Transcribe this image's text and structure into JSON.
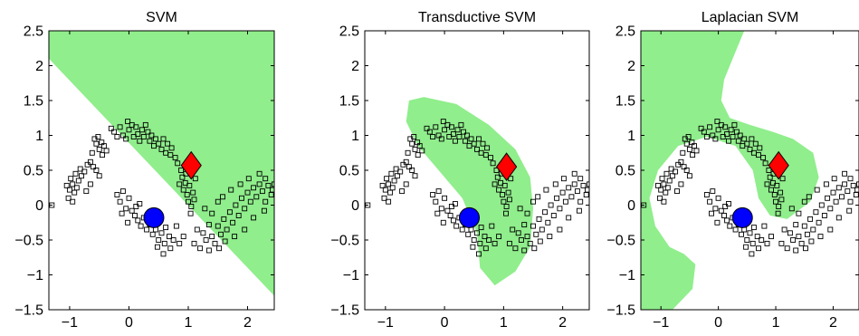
{
  "colors": {
    "region": "#90ee8c",
    "frame": "#000000",
    "unlabeled_marker": "#000000",
    "class_pos": "#ff0000",
    "class_neg": "#0000ff",
    "background": "#ffffff"
  },
  "chart_data": [
    {
      "type": "scatter",
      "title": "SVM",
      "xlim": [
        -1.35,
        2.45
      ],
      "ylim": [
        -1.5,
        2.5
      ],
      "xticks": [
        -1,
        0,
        1,
        2
      ],
      "yticks": [
        -1.5,
        -1,
        -0.5,
        0,
        0.5,
        1,
        1.5,
        2,
        2.5
      ],
      "xticklabels": [
        "−1",
        "0",
        "1",
        "2"
      ],
      "yticklabels": [
        "−1.5",
        "−1",
        "−0.5",
        "0",
        "0.5",
        "1",
        "1.5",
        "2",
        "2.5"
      ],
      "labeled_points": [
        {
          "class": "+1",
          "marker": "diamond",
          "x": 1.05,
          "y": 0.57
        },
        {
          "class": "-1",
          "marker": "circle",
          "x": 0.42,
          "y": -0.18
        }
      ],
      "region": [
        [
          -1.35,
          2.5
        ],
        [
          2.45,
          2.5
        ],
        [
          2.45,
          -1.3
        ],
        [
          -1.35,
          2.1
        ]
      ]
    },
    {
      "type": "scatter",
      "title": "Transductive SVM",
      "xlim": [
        -1.35,
        2.45
      ],
      "ylim": [
        -1.5,
        2.5
      ],
      "xticks": [
        -1,
        0,
        1,
        2
      ],
      "yticks": [
        -1.5,
        -1,
        -0.5,
        0,
        0.5,
        1,
        1.5,
        2,
        2.5
      ],
      "xticklabels": [
        "−1",
        "0",
        "1",
        "2"
      ],
      "yticklabels": [
        "−1.5",
        "−1",
        "−0.5",
        "0",
        "0.5",
        "1",
        "1.5",
        "2",
        "2.5"
      ],
      "labeled_points": [
        {
          "class": "+1",
          "marker": "diamond",
          "x": 1.05,
          "y": 0.55
        },
        {
          "class": "-1",
          "marker": "circle",
          "x": 0.42,
          "y": -0.18
        }
      ],
      "region": [
        [
          -0.35,
          1.55
        ],
        [
          0.2,
          1.45
        ],
        [
          0.75,
          1.15
        ],
        [
          1.2,
          0.8
        ],
        [
          1.45,
          0.4
        ],
        [
          1.5,
          -0.05
        ],
        [
          1.45,
          -0.6
        ],
        [
          1.2,
          -0.95
        ],
        [
          0.85,
          -1.15
        ],
        [
          0.6,
          -0.9
        ],
        [
          0.55,
          -0.4
        ],
        [
          0.3,
          0.1
        ],
        [
          -0.1,
          0.5
        ],
        [
          -0.45,
          0.85
        ],
        [
          -0.65,
          1.2
        ],
        [
          -0.6,
          1.5
        ]
      ]
    },
    {
      "type": "scatter",
      "title": "Laplacian SVM",
      "xlim": [
        -1.35,
        2.45
      ],
      "ylim": [
        -1.5,
        2.5
      ],
      "xticks": [
        -1,
        0,
        1,
        2
      ],
      "yticks": [
        -1.5,
        -1,
        -0.5,
        0,
        0.5,
        1,
        1.5,
        2,
        2.5
      ],
      "xticklabels": [
        "−1",
        "0",
        "1",
        "2"
      ],
      "yticklabels": [
        "−1.5",
        "−1",
        "−0.5",
        "0",
        "0.5",
        "1",
        "1.5",
        "2",
        "2.5"
      ],
      "labeled_points": [
        {
          "class": "+1",
          "marker": "diamond",
          "x": 1.05,
          "y": 0.57
        },
        {
          "class": "-1",
          "marker": "circle",
          "x": 0.42,
          "y": -0.18
        }
      ],
      "region": [
        [
          -1.35,
          2.5
        ],
        [
          0.45,
          2.5
        ],
        [
          0.3,
          2.2
        ],
        [
          0.1,
          1.8
        ],
        [
          0.05,
          1.5
        ],
        [
          0.2,
          1.25
        ],
        [
          0.55,
          1.15
        ],
        [
          0.95,
          1.05
        ],
        [
          1.3,
          0.95
        ],
        [
          1.65,
          0.75
        ],
        [
          1.75,
          0.4
        ],
        [
          1.6,
          0.05
        ],
        [
          1.2,
          -0.2
        ],
        [
          0.9,
          -0.15
        ],
        [
          0.7,
          0.1
        ],
        [
          0.6,
          0.5
        ],
        [
          0.3,
          0.85
        ],
        [
          -0.2,
          0.98
        ],
        [
          -0.7,
          0.85
        ],
        [
          -1.05,
          0.5
        ],
        [
          -1.2,
          0.1
        ],
        [
          -1.1,
          -0.3
        ],
        [
          -0.85,
          -0.6
        ],
        [
          -0.6,
          -0.7
        ],
        [
          -0.4,
          -0.85
        ],
        [
          -0.45,
          -1.2
        ],
        [
          -0.8,
          -1.5
        ],
        [
          -1.35,
          -1.5
        ]
      ]
    }
  ],
  "unlabeled_points": [
    [
      -0.58,
      0.95
    ],
    [
      -0.55,
      0.88
    ],
    [
      -0.52,
      0.98
    ],
    [
      -0.5,
      0.8
    ],
    [
      -0.46,
      0.9
    ],
    [
      -0.45,
      0.72
    ],
    [
      -0.42,
      0.85
    ],
    [
      -0.38,
      0.78
    ],
    [
      -0.62,
      0.75
    ],
    [
      -0.65,
      0.62
    ],
    [
      -0.6,
      0.55
    ],
    [
      -0.7,
      0.58
    ],
    [
      -0.75,
      0.48
    ],
    [
      -0.8,
      0.42
    ],
    [
      -0.82,
      0.52
    ],
    [
      -0.85,
      0.35
    ],
    [
      -0.88,
      0.25
    ],
    [
      -0.9,
      0.45
    ],
    [
      -0.92,
      0.18
    ],
    [
      -0.95,
      0.3
    ],
    [
      -0.98,
      0.38
    ],
    [
      -1.0,
      0.22
    ],
    [
      -1.02,
      0.1
    ],
    [
      -1.05,
      0.28
    ],
    [
      -0.55,
      0.5
    ],
    [
      -0.5,
      0.42
    ],
    [
      -0.65,
      0.3
    ],
    [
      -0.72,
      0.2
    ],
    [
      -0.95,
      0.05
    ],
    [
      -1.3,
      0.0
    ],
    [
      -0.3,
      1.1
    ],
    [
      -0.25,
      1.05
    ],
    [
      -0.2,
      0.98
    ],
    [
      -0.15,
      1.12
    ],
    [
      -0.1,
      1.0
    ],
    [
      -0.05,
      0.95
    ],
    [
      0.0,
      1.08
    ],
    [
      0.05,
      1.15
    ],
    [
      0.08,
      0.98
    ],
    [
      0.12,
      1.12
    ],
    [
      0.15,
      1.02
    ],
    [
      0.18,
      0.92
    ],
    [
      0.22,
      1.08
    ],
    [
      0.25,
      0.98
    ],
    [
      0.28,
      1.15
    ],
    [
      -0.02,
      1.2
    ],
    [
      0.32,
      1.05
    ],
    [
      0.35,
      0.92
    ],
    [
      0.38,
      1.0
    ],
    [
      0.42,
      0.85
    ],
    [
      0.45,
      0.95
    ],
    [
      0.5,
      0.88
    ],
    [
      0.55,
      0.8
    ],
    [
      0.58,
      0.95
    ],
    [
      0.62,
      0.75
    ],
    [
      0.65,
      0.88
    ],
    [
      0.7,
      0.72
    ],
    [
      0.72,
      0.82
    ],
    [
      0.78,
      0.68
    ],
    [
      0.82,
      0.6
    ],
    [
      0.88,
      0.5
    ],
    [
      0.9,
      0.4
    ],
    [
      0.95,
      0.32
    ],
    [
      0.92,
      0.22
    ],
    [
      0.98,
      0.15
    ],
    [
      1.0,
      0.05
    ],
    [
      1.02,
      0.28
    ],
    [
      1.05,
      -0.02
    ],
    [
      1.08,
      0.18
    ],
    [
      1.1,
      0.08
    ],
    [
      0.85,
      0.3
    ],
    [
      1.12,
      0.38
    ],
    [
      0.96,
      0.45
    ],
    [
      1.04,
      -0.12
    ],
    [
      -0.2,
      0.15
    ],
    [
      -0.15,
      0.05
    ],
    [
      -0.1,
      0.2
    ],
    [
      -0.05,
      -0.05
    ],
    [
      -0.12,
      -0.12
    ],
    [
      0.0,
      0.1
    ],
    [
      0.05,
      -0.08
    ],
    [
      0.1,
      -0.15
    ],
    [
      0.15,
      -0.22
    ],
    [
      0.12,
      -0.02
    ],
    [
      0.2,
      -0.3
    ],
    [
      0.25,
      -0.18
    ],
    [
      0.3,
      -0.35
    ],
    [
      0.35,
      -0.28
    ],
    [
      0.4,
      -0.42
    ],
    [
      0.45,
      -0.35
    ],
    [
      0.5,
      -0.5
    ],
    [
      0.55,
      -0.4
    ],
    [
      0.6,
      -0.55
    ],
    [
      0.62,
      -0.32
    ],
    [
      0.68,
      -0.45
    ],
    [
      0.7,
      -0.62
    ],
    [
      0.75,
      -0.5
    ],
    [
      0.8,
      -0.3
    ],
    [
      0.85,
      -0.55
    ],
    [
      -0.02,
      -0.25
    ],
    [
      0.18,
      0.02
    ],
    [
      0.58,
      -0.7
    ],
    [
      0.48,
      -0.6
    ],
    [
      0.92,
      -0.45
    ],
    [
      1.1,
      -0.55
    ],
    [
      1.15,
      -0.35
    ],
    [
      1.2,
      -0.62
    ],
    [
      1.25,
      -0.4
    ],
    [
      1.3,
      -0.5
    ],
    [
      1.35,
      -0.28
    ],
    [
      1.4,
      -0.45
    ],
    [
      1.45,
      -0.55
    ],
    [
      1.5,
      -0.3
    ],
    [
      1.55,
      -0.42
    ],
    [
      1.6,
      -0.2
    ],
    [
      1.65,
      -0.35
    ],
    [
      1.7,
      -0.1
    ],
    [
      1.75,
      -0.25
    ],
    [
      1.8,
      0.0
    ],
    [
      1.85,
      -0.15
    ],
    [
      1.9,
      0.1
    ],
    [
      1.95,
      -0.05
    ],
    [
      2.0,
      0.18
    ],
    [
      2.05,
      0.05
    ],
    [
      2.1,
      0.25
    ],
    [
      2.15,
      0.12
    ],
    [
      2.2,
      0.3
    ],
    [
      2.25,
      0.2
    ],
    [
      2.3,
      0.05
    ],
    [
      2.35,
      0.28
    ],
    [
      2.4,
      0.15
    ],
    [
      2.3,
      0.38
    ],
    [
      2.2,
      0.45
    ],
    [
      2.42,
      0.22
    ],
    [
      1.58,
      0.12
    ],
    [
      1.72,
      0.22
    ],
    [
      1.88,
      0.3
    ],
    [
      2.02,
      0.38
    ],
    [
      1.4,
      -0.12
    ],
    [
      1.28,
      -0.05
    ],
    [
      1.5,
      0.05
    ],
    [
      1.62,
      -0.52
    ],
    [
      1.78,
      -0.45
    ],
    [
      1.95,
      -0.35
    ],
    [
      2.1,
      -0.18
    ],
    [
      1.35,
      -0.65
    ],
    [
      1.52,
      -0.62
    ],
    [
      2.28,
      -0.08
    ],
    [
      2.45,
      0.3
    ]
  ]
}
